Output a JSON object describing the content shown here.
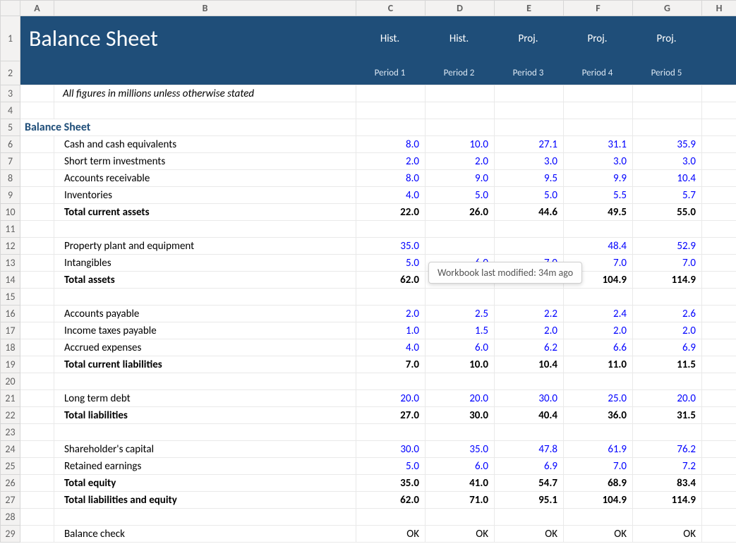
{
  "columns": {
    "letters": [
      "A",
      "B",
      "C",
      "D",
      "E",
      "F",
      "G",
      "H"
    ],
    "widths": [
      48,
      428,
      98,
      98,
      98,
      98,
      98,
      49
    ]
  },
  "row_numbers": [
    "1",
    "2",
    "3",
    "4",
    "5",
    "6",
    "7",
    "8",
    "9",
    "10",
    "11",
    "12",
    "13",
    "14",
    "15",
    "16",
    "17",
    "18",
    "19",
    "20",
    "21",
    "22",
    "23",
    "24",
    "25",
    "26",
    "27",
    "28",
    "29"
  ],
  "title": "Balance Sheet",
  "band_labels": [
    "Hist.",
    "Hist.",
    "Proj.",
    "Proj.",
    "Proj."
  ],
  "period_labels": [
    "Period 1",
    "Period 2",
    "Period 3",
    "Period 4",
    "Period 5"
  ],
  "note": "All figures in millions unless otherwise stated",
  "section_title": "Balance Sheet",
  "tooltip": "Workbook last modified: 34m ago",
  "rows": [
    {
      "id": "cash",
      "label": "Cash and cash equivalents",
      "vals": [
        "8.0",
        "10.0",
        "27.1",
        "31.1",
        "35.9"
      ],
      "type": "line"
    },
    {
      "id": "sti",
      "label": "Short term investments",
      "vals": [
        "2.0",
        "2.0",
        "3.0",
        "3.0",
        "3.0"
      ],
      "type": "line"
    },
    {
      "id": "ar",
      "label": "Accounts receivable",
      "vals": [
        "8.0",
        "9.0",
        "9.5",
        "9.9",
        "10.4"
      ],
      "type": "line"
    },
    {
      "id": "inv",
      "label": "Inventories",
      "vals": [
        "4.0",
        "5.0",
        "5.0",
        "5.5",
        "5.7"
      ],
      "type": "line"
    },
    {
      "id": "tca",
      "label": "Total current assets",
      "vals": [
        "22.0",
        "26.0",
        "44.6",
        "49.5",
        "55.0"
      ],
      "type": "total"
    },
    {
      "id": "blank1",
      "type": "blank"
    },
    {
      "id": "ppe",
      "label": "Property plant and equipment",
      "vals": [
        "35.0",
        "",
        "",
        "48.4",
        "52.9"
      ],
      "type": "line"
    },
    {
      "id": "intan",
      "label": "Intangibles",
      "vals": [
        "5.0",
        "6.0",
        "7.0",
        "7.0",
        "7.0"
      ],
      "type": "line"
    },
    {
      "id": "ta",
      "label": "Total assets",
      "vals": [
        "62.0",
        "71.0",
        "95.1",
        "104.9",
        "114.9"
      ],
      "type": "total"
    },
    {
      "id": "blank2",
      "type": "blank"
    },
    {
      "id": "ap",
      "label": "Accounts payable",
      "vals": [
        "2.0",
        "2.5",
        "2.2",
        "2.4",
        "2.6"
      ],
      "type": "line"
    },
    {
      "id": "itp",
      "label": "Income taxes payable",
      "vals": [
        "1.0",
        "1.5",
        "2.0",
        "2.0",
        "2.0"
      ],
      "type": "line"
    },
    {
      "id": "accr",
      "label": "Accrued expenses",
      "vals": [
        "4.0",
        "6.0",
        "6.2",
        "6.6",
        "6.9"
      ],
      "type": "line"
    },
    {
      "id": "tcl",
      "label": "Total current liabilities",
      "vals": [
        "7.0",
        "10.0",
        "10.4",
        "11.0",
        "11.5"
      ],
      "type": "total"
    },
    {
      "id": "blank3",
      "type": "blank"
    },
    {
      "id": "ltd",
      "label": "Long term debt",
      "vals": [
        "20.0",
        "20.0",
        "30.0",
        "25.0",
        "20.0"
      ],
      "type": "line"
    },
    {
      "id": "tl",
      "label": "Total liabilities",
      "vals": [
        "27.0",
        "30.0",
        "40.4",
        "36.0",
        "31.5"
      ],
      "type": "total"
    },
    {
      "id": "blank4",
      "type": "blank"
    },
    {
      "id": "cap",
      "label": "Shareholder's capital",
      "vals": [
        "30.0",
        "35.0",
        "47.8",
        "61.9",
        "76.2"
      ],
      "type": "line"
    },
    {
      "id": "re",
      "label": "Retained earnings",
      "vals": [
        "5.0",
        "6.0",
        "6.9",
        "7.0",
        "7.2"
      ],
      "type": "line"
    },
    {
      "id": "te",
      "label": "Total equity",
      "vals": [
        "35.0",
        "41.0",
        "54.7",
        "68.9",
        "83.4"
      ],
      "type": "total"
    },
    {
      "id": "tle",
      "label": "Total liabilities and equity",
      "vals": [
        "62.0",
        "71.0",
        "95.1",
        "104.9",
        "114.9"
      ],
      "type": "total_noline"
    },
    {
      "id": "blank5",
      "type": "blank"
    },
    {
      "id": "check",
      "label": "Balance check",
      "vals": [
        "OK",
        "OK",
        "OK",
        "OK",
        "OK"
      ],
      "type": "check"
    }
  ],
  "colors": {
    "header_band": "#1f4e79",
    "section_title": "#1f4e79",
    "value_blue": "#0000ff",
    "grid": "#e9e9e9",
    "hdr_bg": "#f3f2f1"
  }
}
